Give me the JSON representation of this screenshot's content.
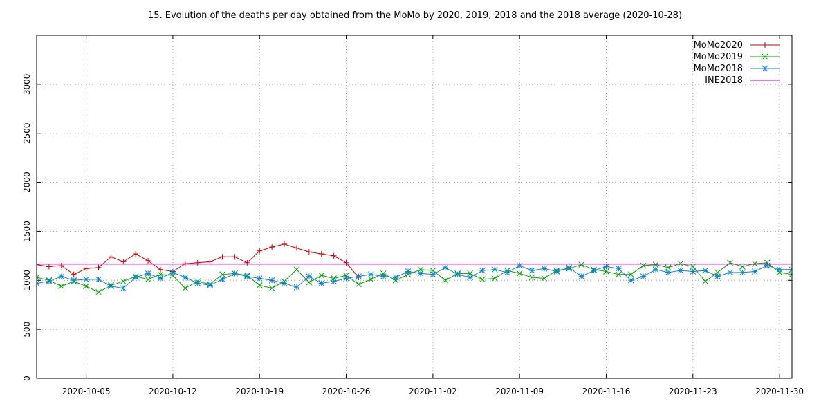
{
  "chart_data": {
    "type": "line",
    "title": "15. Evolution of the deaths per day obtained from the MoMo by 2020, 2019, 2018 and the 2018 average (2020-10-28)",
    "xlabel": "",
    "ylabel": "",
    "ylim": [
      0,
      3500
    ],
    "yticks": [
      0,
      500,
      1000,
      1500,
      2000,
      2500,
      3000
    ],
    "xlim": [
      "2020-10-01",
      "2020-12-01"
    ],
    "xticks": [
      "2020-10-05",
      "2020-10-12",
      "2020-10-19",
      "2020-10-26",
      "2020-11-02",
      "2020-11-09",
      "2020-11-16",
      "2020-11-23",
      "2020-11-30"
    ],
    "grid": true,
    "legend": "top-right",
    "x_start": "2020-10-01",
    "series": [
      {
        "name": "MoMo2020",
        "color": "#cc0000",
        "marker": "plus",
        "values": [
          1160,
          1140,
          1150,
          1060,
          1120,
          1130,
          1240,
          1190,
          1270,
          1200,
          1110,
          1090,
          1170,
          1180,
          1190,
          1240,
          1240,
          1180,
          1300,
          1340,
          1370,
          1330,
          1290,
          1270,
          1250,
          1180,
          1030
        ]
      },
      {
        "name": "MoMo2019",
        "color": "#00a000",
        "marker": "cross",
        "values": [
          1030,
          1000,
          940,
          990,
          940,
          880,
          950,
          990,
          1040,
          1010,
          1060,
          1050,
          920,
          990,
          960,
          1060,
          1070,
          1050,
          950,
          920,
          990,
          1110,
          980,
          1050,
          1020,
          1050,
          960,
          1010,
          1070,
          1000,
          1060,
          1110,
          1100,
          1000,
          1070,
          1070,
          1010,
          1020,
          1100,
          1070,
          1030,
          1020,
          1100,
          1120,
          1160,
          1110,
          1090,
          1060,
          1060,
          1150,
          1160,
          1130,
          1170,
          1140,
          990,
          1080,
          1180,
          1140,
          1170,
          1180,
          1080,
          1060
        ]
      },
      {
        "name": "MoMo2018",
        "color": "#1080d0",
        "marker": "star",
        "values": [
          970,
          990,
          1040,
          1000,
          1010,
          1010,
          940,
          920,
          1030,
          1070,
          1020,
          1080,
          1030,
          970,
          950,
          1010,
          1070,
          1040,
          1020,
          1000,
          970,
          930,
          1040,
          970,
          990,
          1020,
          1040,
          1060,
          1040,
          1030,
          1090,
          1070,
          1060,
          1130,
          1060,
          1030,
          1100,
          1110,
          1080,
          1150,
          1100,
          1120,
          1090,
          1130,
          1040,
          1100,
          1140,
          1120,
          1000,
          1040,
          1110,
          1080,
          1100,
          1090,
          1100,
          1040,
          1080,
          1080,
          1090,
          1150,
          1110,
          1110
        ]
      },
      {
        "name": "INE2018",
        "color": "#c000c0",
        "marker": "none",
        "constant": 1165
      }
    ]
  }
}
